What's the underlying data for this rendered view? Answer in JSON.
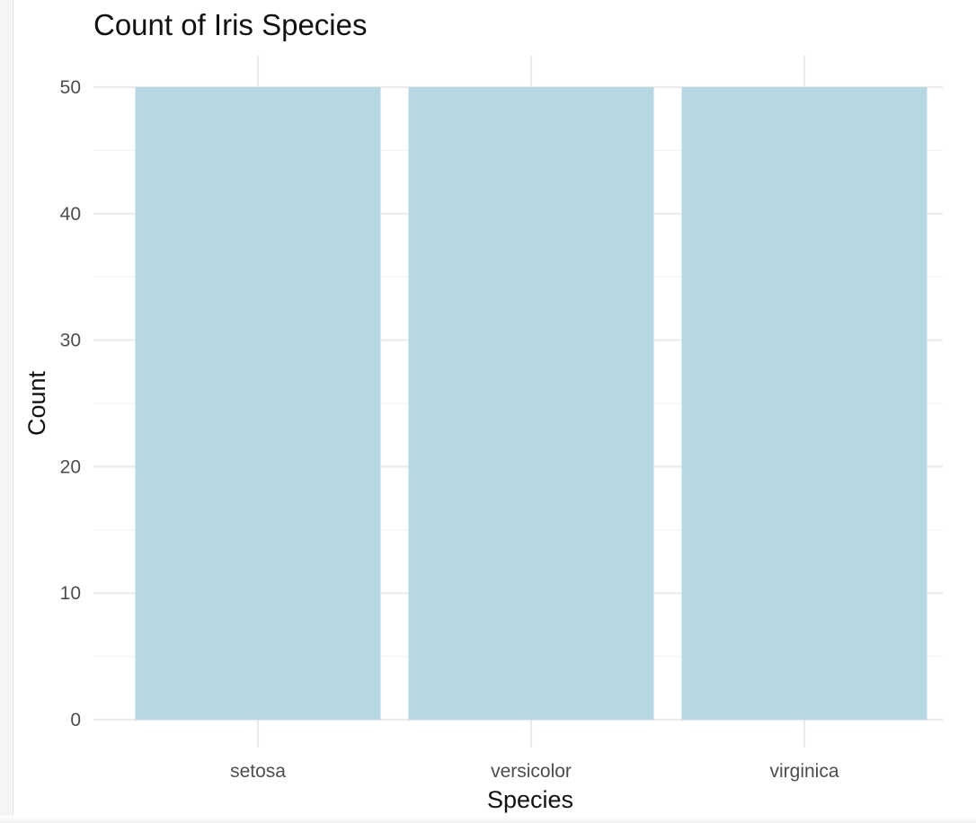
{
  "chart_data": {
    "type": "bar",
    "title": "Count of Iris Species",
    "xlabel": "Species",
    "ylabel": "Count",
    "categories": [
      "setosa",
      "versicolor",
      "virginica"
    ],
    "values": [
      50,
      50,
      50
    ],
    "ylim": [
      0,
      50
    ],
    "yticks": [
      0,
      10,
      20,
      30,
      40,
      50
    ],
    "grid": true,
    "legend": "none",
    "colors": {
      "bar": "#b7d8e3",
      "grid_major": "#ebebeb",
      "grid_minor": "#f3f3f3",
      "background": "#ffffff"
    }
  }
}
